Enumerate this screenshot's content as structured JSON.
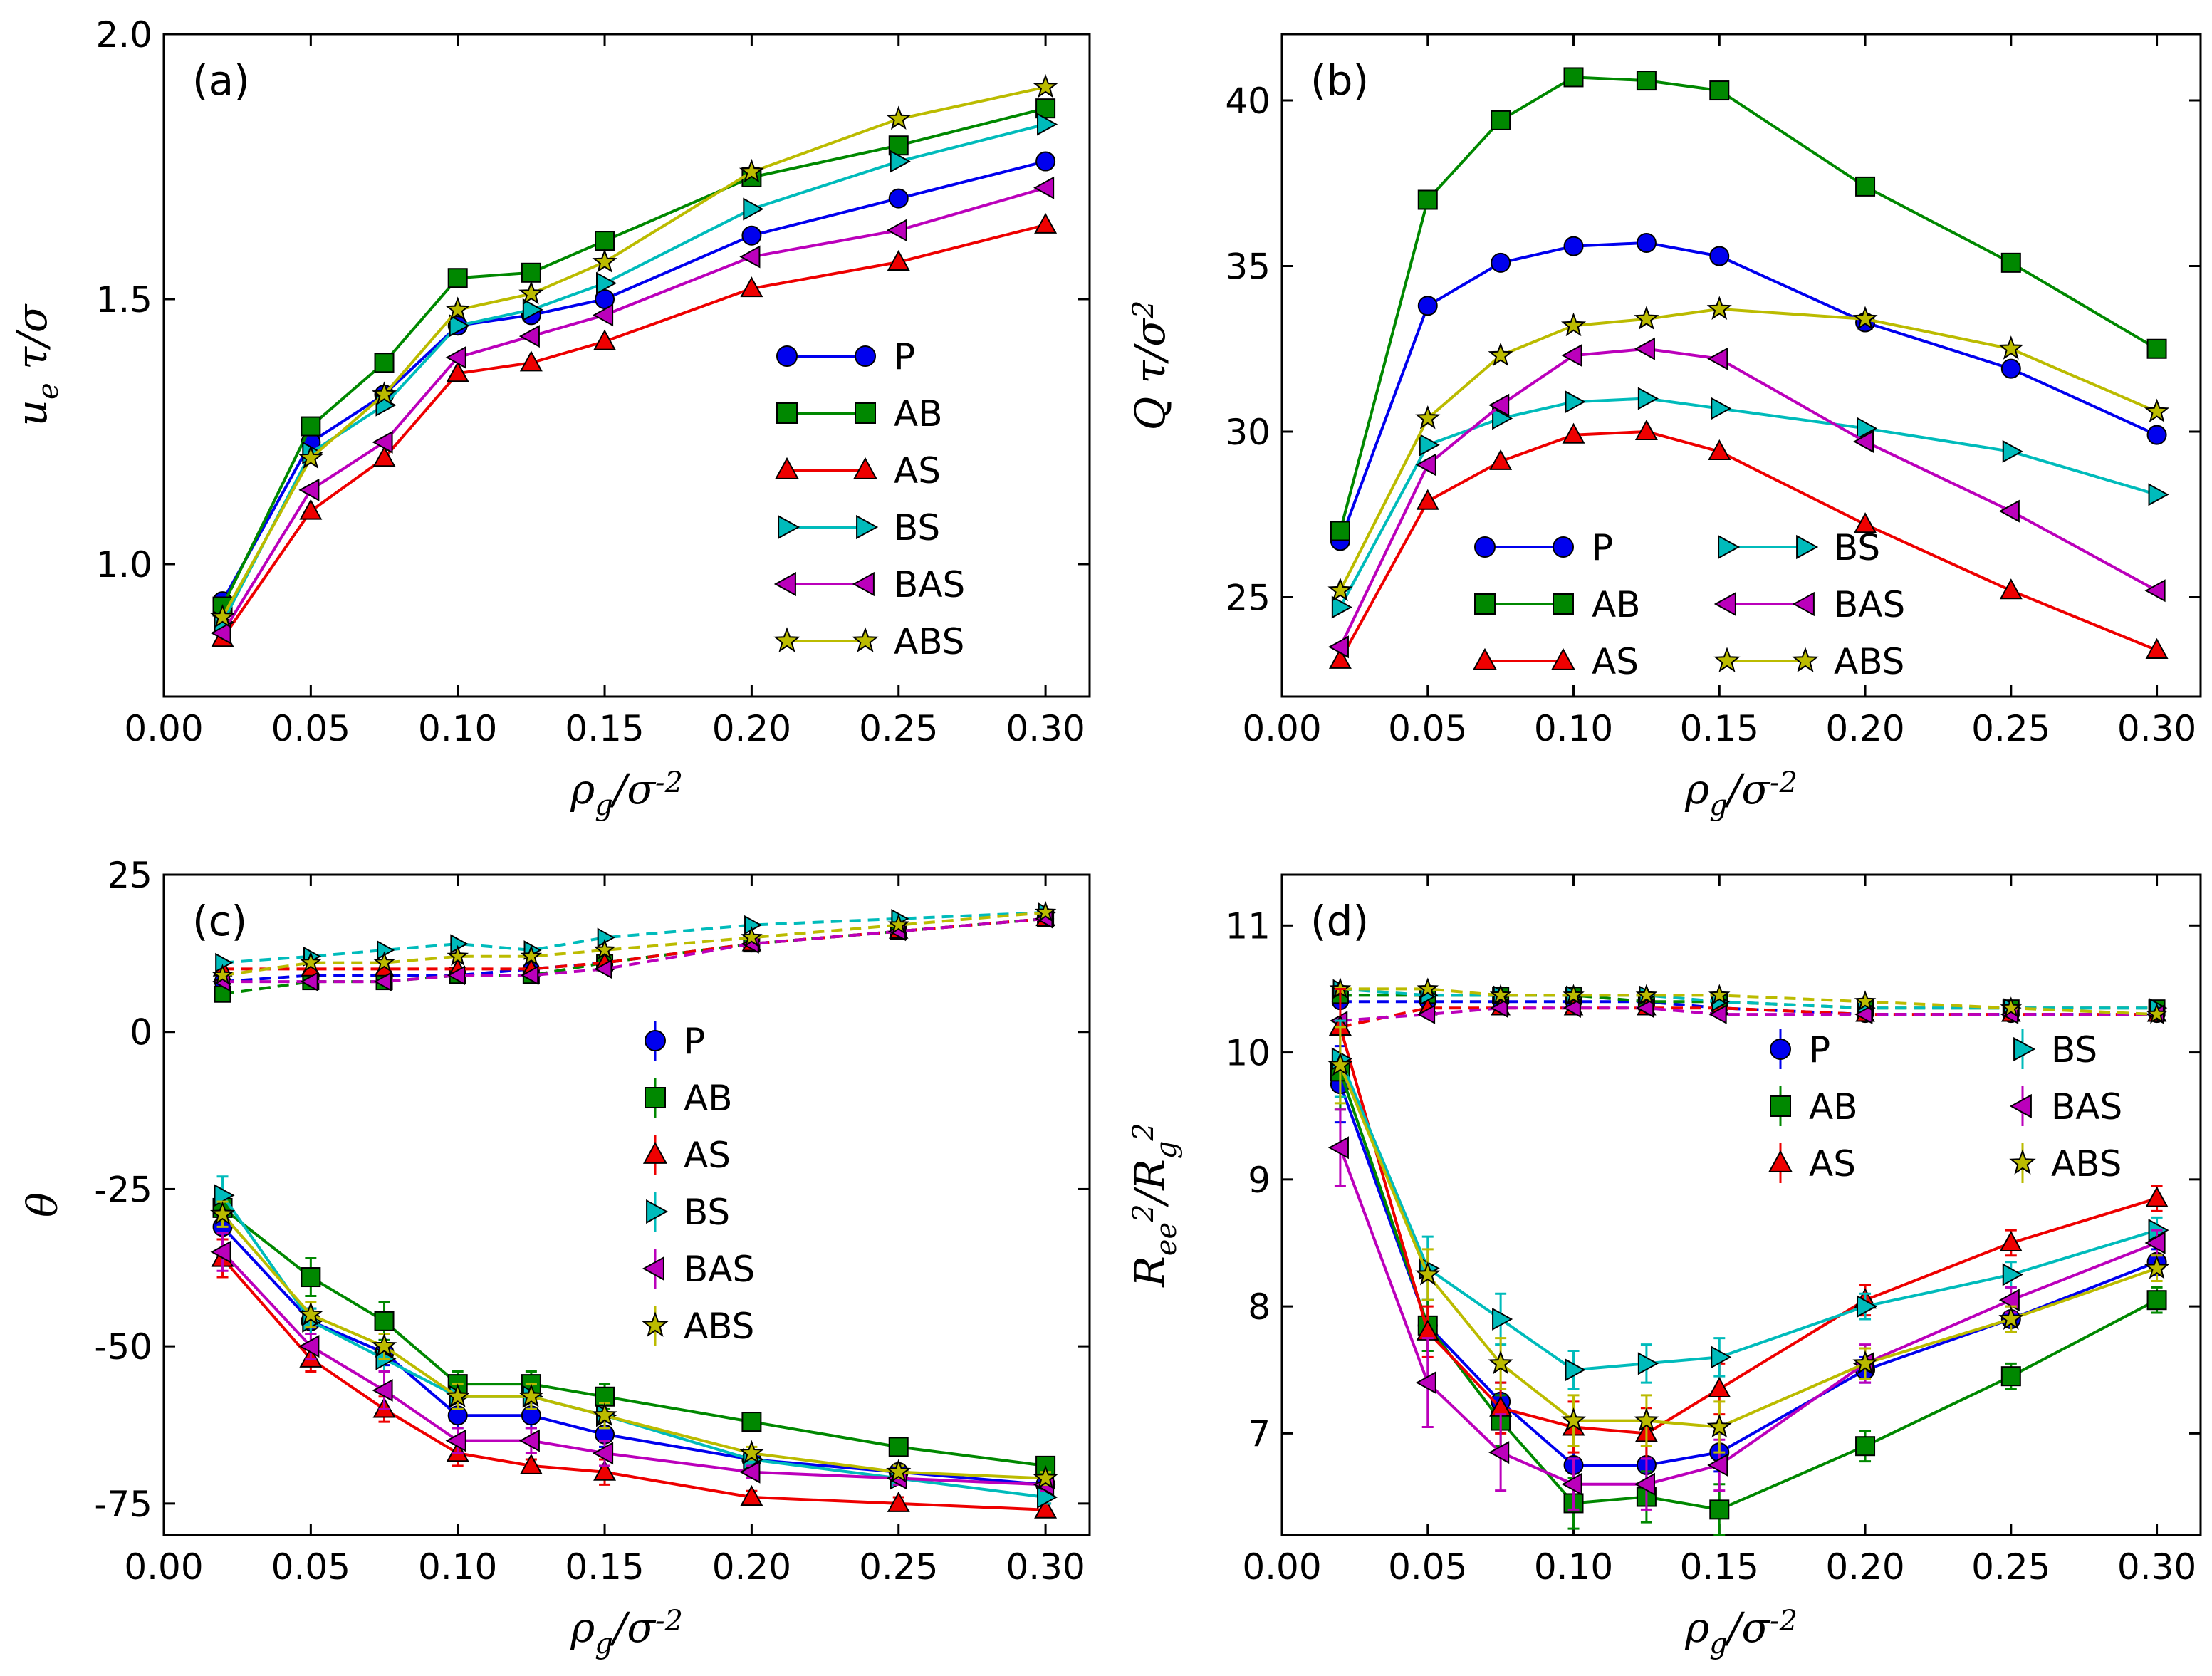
{
  "figure": {
    "colors": {
      "P": "#0000ee",
      "AB": "#008800",
      "AS": "#ee0000",
      "BS": "#00bbbb",
      "BAS": "#bb00bb",
      "ABS": "#bbbb00"
    },
    "markers": {
      "P": "circle",
      "AB": "square",
      "AS": "triangle-up",
      "BS": "triangle-right",
      "BAS": "triangle-left",
      "ABS": "star"
    }
  },
  "chart_data": [
    {
      "type": "line",
      "label": "(a)",
      "xlabel": "ρ_g/σ^-2",
      "ylabel": "u_e τ/σ",
      "xlim": [
        0.0,
        0.315
      ],
      "ylim": [
        0.75,
        2.0
      ],
      "xticks": [
        0.0,
        0.05,
        0.1,
        0.15,
        0.2,
        0.25,
        0.3
      ],
      "xtick_labels": [
        "0.00",
        "0.05",
        "0.10",
        "0.15",
        "0.20",
        "0.25",
        "0.30"
      ],
      "yticks": [
        1.0,
        1.5,
        2.0
      ],
      "ytick_labels": [
        "1.0",
        "1.5",
        "2.0"
      ],
      "x": [
        0.02,
        0.05,
        0.075,
        0.1,
        0.125,
        0.15,
        0.2,
        0.25,
        0.3
      ],
      "legend": {
        "placement": "center-right",
        "columns": 1
      },
      "series": [
        {
          "name": "P",
          "values": [
            0.93,
            1.23,
            1.32,
            1.45,
            1.47,
            1.5,
            1.62,
            1.69,
            1.76
          ]
        },
        {
          "name": "AB",
          "values": [
            0.92,
            1.26,
            1.38,
            1.54,
            1.55,
            1.61,
            1.73,
            1.79,
            1.86
          ]
        },
        {
          "name": "AS",
          "values": [
            0.86,
            1.1,
            1.2,
            1.36,
            1.38,
            1.42,
            1.52,
            1.57,
            1.64
          ]
        },
        {
          "name": "BS",
          "values": [
            0.89,
            1.21,
            1.3,
            1.45,
            1.48,
            1.53,
            1.67,
            1.76,
            1.83
          ]
        },
        {
          "name": "BAS",
          "values": [
            0.87,
            1.14,
            1.23,
            1.39,
            1.43,
            1.47,
            1.58,
            1.63,
            1.71
          ]
        },
        {
          "name": "ABS",
          "values": [
            0.9,
            1.2,
            1.32,
            1.48,
            1.51,
            1.57,
            1.74,
            1.84,
            1.9
          ]
        }
      ]
    },
    {
      "type": "line",
      "label": "(b)",
      "xlabel": "ρ_g/σ^-2",
      "ylabel": "Q τ/σ^2",
      "xlim": [
        0.0,
        0.315
      ],
      "ylim": [
        22.0,
        42.0
      ],
      "xticks": [
        0.0,
        0.05,
        0.1,
        0.15,
        0.2,
        0.25,
        0.3
      ],
      "xtick_labels": [
        "0.00",
        "0.05",
        "0.10",
        "0.15",
        "0.20",
        "0.25",
        "0.30"
      ],
      "yticks": [
        25,
        30,
        35,
        40
      ],
      "ytick_labels": [
        "25",
        "30",
        "35",
        "40"
      ],
      "x": [
        0.02,
        0.05,
        0.075,
        0.1,
        0.125,
        0.15,
        0.2,
        0.25,
        0.3
      ],
      "legend": {
        "placement": "lower-center",
        "columns": 2
      },
      "series": [
        {
          "name": "P",
          "values": [
            26.7,
            33.8,
            35.1,
            35.6,
            35.7,
            35.3,
            33.3,
            31.9,
            29.9
          ]
        },
        {
          "name": "AB",
          "values": [
            27.0,
            37.0,
            39.4,
            40.7,
            40.6,
            40.3,
            37.4,
            35.1,
            32.5
          ]
        },
        {
          "name": "AS",
          "values": [
            23.1,
            27.9,
            29.1,
            29.9,
            30.0,
            29.4,
            27.2,
            25.2,
            23.4
          ]
        },
        {
          "name": "BS",
          "values": [
            24.7,
            29.6,
            30.4,
            30.9,
            31.0,
            30.7,
            30.1,
            29.4,
            28.1
          ]
        },
        {
          "name": "BAS",
          "values": [
            23.5,
            29.0,
            30.8,
            32.3,
            32.5,
            32.2,
            29.7,
            27.6,
            25.2
          ]
        },
        {
          "name": "ABS",
          "values": [
            25.2,
            30.4,
            32.3,
            33.2,
            33.4,
            33.7,
            33.4,
            32.5,
            30.6
          ]
        }
      ]
    },
    {
      "type": "line",
      "label": "(c)",
      "xlabel": "ρ_g/σ^-2",
      "ylabel": "θ",
      "xlim": [
        0.0,
        0.315
      ],
      "ylim": [
        -80,
        25
      ],
      "xticks": [
        0.0,
        0.05,
        0.1,
        0.15,
        0.2,
        0.25,
        0.3
      ],
      "xtick_labels": [
        "0.00",
        "0.05",
        "0.10",
        "0.15",
        "0.20",
        "0.25",
        "0.30"
      ],
      "yticks": [
        -75,
        -50,
        -25,
        0,
        25
      ],
      "ytick_labels": [
        "-75",
        "-50",
        "-25",
        "0",
        "25"
      ],
      "x": [
        0.02,
        0.05,
        0.075,
        0.1,
        0.125,
        0.15,
        0.2,
        0.25,
        0.3
      ],
      "legend": {
        "placement": "center-right",
        "columns": 1
      },
      "series": [
        {
          "name": "P",
          "values": [
            -31,
            -46,
            -51,
            -61,
            -61,
            -64,
            -68,
            -70,
            -72
          ],
          "errors": [
            2,
            2,
            2,
            2,
            2,
            2,
            1,
            1,
            1
          ]
        },
        {
          "name": "AB",
          "values": [
            -28,
            -39,
            -46,
            -56,
            -56,
            -58,
            -62,
            -66,
            -69
          ],
          "errors": [
            2,
            3,
            3,
            2,
            2,
            2,
            1,
            1,
            1
          ]
        },
        {
          "name": "AS",
          "values": [
            -36,
            -52,
            -60,
            -67,
            -69,
            -70,
            -74,
            -75,
            -76
          ],
          "errors": [
            3,
            2,
            2,
            2,
            1,
            2,
            1,
            1,
            1
          ]
        },
        {
          "name": "BS",
          "values": [
            -26,
            -46,
            -52,
            -58,
            -58,
            -61,
            -68,
            -71,
            -74
          ],
          "errors": [
            3,
            2,
            2,
            2,
            2,
            2,
            1,
            1,
            1
          ]
        },
        {
          "name": "BAS",
          "values": [
            -35,
            -50,
            -57,
            -65,
            -65,
            -67,
            -70,
            -71,
            -72
          ],
          "errors": [
            3,
            2,
            3,
            2,
            2,
            2,
            1,
            1,
            1
          ]
        },
        {
          "name": "ABS",
          "values": [
            -29,
            -45,
            -50,
            -58,
            -58,
            -61,
            -67,
            -70,
            -71
          ],
          "errors": [
            2,
            2,
            2,
            2,
            2,
            2,
            1,
            1,
            1
          ]
        }
      ],
      "dashed_series": [
        {
          "name": "P",
          "values": [
            8,
            9,
            9,
            9,
            10,
            11,
            14,
            16,
            18
          ]
        },
        {
          "name": "AB",
          "values": [
            6,
            8,
            8,
            9,
            9,
            11,
            14,
            16,
            18
          ]
        },
        {
          "name": "AS",
          "values": [
            10,
            10,
            10,
            10,
            10,
            11,
            14,
            16,
            18
          ]
        },
        {
          "name": "BS",
          "values": [
            11,
            12,
            13,
            14,
            13,
            15,
            17,
            18,
            19
          ]
        },
        {
          "name": "BAS",
          "values": [
            8,
            8,
            8,
            9,
            9,
            10,
            14,
            16,
            18
          ]
        },
        {
          "name": "ABS",
          "values": [
            9,
            11,
            11,
            12,
            12,
            13,
            15,
            17,
            19
          ]
        }
      ]
    },
    {
      "type": "line",
      "label": "(d)",
      "xlabel": "ρ_g/σ^-2",
      "ylabel": "R_ee^2/R_g^2",
      "xlim": [
        0.0,
        0.315
      ],
      "ylim": [
        6.2,
        11.4
      ],
      "xticks": [
        0.0,
        0.05,
        0.1,
        0.15,
        0.2,
        0.25,
        0.3
      ],
      "xtick_labels": [
        "0.00",
        "0.05",
        "0.10",
        "0.15",
        "0.20",
        "0.25",
        "0.30"
      ],
      "yticks": [
        7,
        8,
        9,
        10,
        11
      ],
      "ytick_labels": [
        "7",
        "8",
        "9",
        "10",
        "11"
      ],
      "x": [
        0.02,
        0.05,
        0.075,
        0.1,
        0.125,
        0.15,
        0.2,
        0.25,
        0.3
      ],
      "legend": {
        "placement": "center",
        "columns": 2
      },
      "series": [
        {
          "name": "P",
          "values": [
            9.75,
            7.85,
            7.25,
            6.75,
            6.75,
            6.85,
            7.5,
            7.9,
            8.35
          ],
          "errors": [
            0.3,
            0.2,
            0.15,
            0.15,
            0.15,
            0.15,
            0.1,
            0.1,
            0.1
          ]
        },
        {
          "name": "AB",
          "values": [
            9.85,
            7.85,
            7.1,
            6.45,
            6.5,
            6.4,
            6.9,
            7.45,
            8.05
          ],
          "errors": [
            0.3,
            0.2,
            0.2,
            0.2,
            0.2,
            0.2,
            0.12,
            0.1,
            0.1
          ]
        },
        {
          "name": "AS",
          "values": [
            10.2,
            7.8,
            7.2,
            7.05,
            7.0,
            7.35,
            8.05,
            8.5,
            8.85
          ],
          "errors": [
            0.3,
            0.2,
            0.2,
            0.2,
            0.2,
            0.2,
            0.12,
            0.1,
            0.1
          ]
        },
        {
          "name": "BS",
          "values": [
            9.95,
            8.3,
            7.9,
            7.5,
            7.55,
            7.6,
            8.0,
            8.25,
            8.6
          ],
          "errors": [
            0.3,
            0.25,
            0.2,
            0.15,
            0.15,
            0.15,
            0.1,
            0.1,
            0.1
          ]
        },
        {
          "name": "BAS",
          "values": [
            9.25,
            7.4,
            6.85,
            6.6,
            6.6,
            6.75,
            7.55,
            8.05,
            8.5
          ],
          "errors": [
            0.3,
            0.35,
            0.3,
            0.2,
            0.2,
            0.2,
            0.15,
            0.1,
            0.1
          ]
        },
        {
          "name": "ABS",
          "values": [
            9.9,
            8.25,
            7.55,
            7.1,
            7.1,
            7.05,
            7.55,
            7.9,
            8.3
          ],
          "errors": [
            0.3,
            0.2,
            0.2,
            0.2,
            0.2,
            0.2,
            0.12,
            0.1,
            0.1
          ]
        }
      ],
      "dashed_series": [
        {
          "name": "P",
          "values": [
            10.4,
            10.4,
            10.4,
            10.4,
            10.4,
            10.35,
            10.3,
            10.3,
            10.3
          ]
        },
        {
          "name": "AB",
          "values": [
            10.45,
            10.45,
            10.45,
            10.45,
            10.4,
            10.4,
            10.35,
            10.35,
            10.35
          ]
        },
        {
          "name": "AS",
          "values": [
            10.2,
            10.35,
            10.35,
            10.35,
            10.35,
            10.35,
            10.3,
            10.3,
            10.3
          ]
        },
        {
          "name": "BS",
          "values": [
            10.5,
            10.45,
            10.45,
            10.45,
            10.45,
            10.4,
            10.35,
            10.35,
            10.35
          ]
        },
        {
          "name": "BAS",
          "values": [
            10.25,
            10.3,
            10.35,
            10.35,
            10.35,
            10.3,
            10.3,
            10.3,
            10.3
          ]
        },
        {
          "name": "ABS",
          "values": [
            10.5,
            10.5,
            10.45,
            10.45,
            10.45,
            10.45,
            10.4,
            10.35,
            10.3
          ]
        }
      ]
    }
  ]
}
